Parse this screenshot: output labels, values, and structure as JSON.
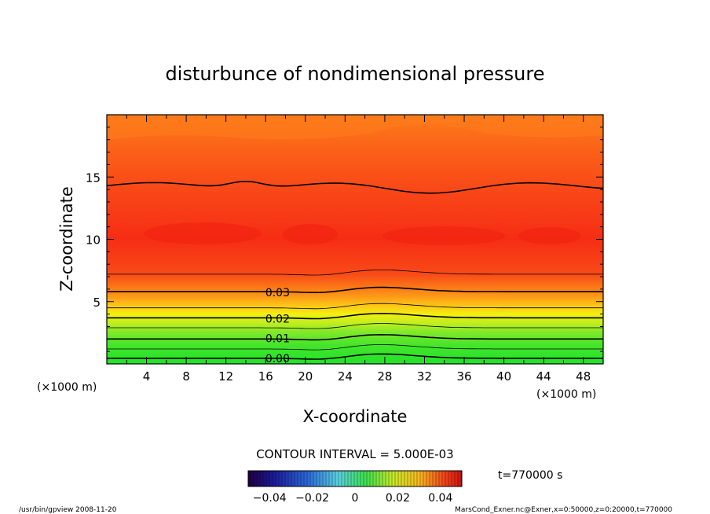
{
  "chart_data": {
    "type": "contour",
    "title": "disturbunce of nondimensional pressure",
    "xlabel": "X-coordinate",
    "ylabel": "Z-coordinate",
    "x_unit_left": "(×1000 m)",
    "x_unit_right": "(×1000 m)",
    "xlim": [
      0,
      50
    ],
    "ylim": [
      0,
      20
    ],
    "x_ticks": [
      4,
      8,
      12,
      16,
      20,
      24,
      28,
      32,
      36,
      40,
      44,
      48
    ],
    "y_ticks": [
      5,
      10,
      15
    ],
    "contour_labels": [
      {
        "value": "0.03",
        "x": 17.2,
        "z": 5.8
      },
      {
        "value": "0.02",
        "x": 17.2,
        "z": 3.7
      },
      {
        "value": "0.01",
        "x": 17.2,
        "z": 2.1
      },
      {
        "value": "0.00",
        "x": 17.2,
        "z": 0.5
      }
    ],
    "contour_interval_text": "CONTOUR INTERVAL = 5.000E-03",
    "time_label": "t=770000 s",
    "colorbar": {
      "vmin": -0.05,
      "vmax": 0.05,
      "tick_values": [
        -0.04,
        -0.02,
        0,
        0.02,
        0.04
      ],
      "tick_labels": [
        "−0.04",
        "−0.02",
        "0",
        "0.02",
        "0.04"
      ]
    },
    "color_levels": [
      {
        "z": 0.0,
        "color": "#22e22a"
      },
      {
        "z": 1.5,
        "color": "#44e52a"
      },
      {
        "z": 2.5,
        "color": "#7ee82a"
      },
      {
        "z": 3.3,
        "color": "#c2ee1e"
      },
      {
        "z": 4.0,
        "color": "#f4ef10"
      },
      {
        "z": 4.7,
        "color": "#fdc416"
      },
      {
        "z": 5.4,
        "color": "#fd9a18"
      },
      {
        "z": 6.2,
        "color": "#fb7616"
      },
      {
        "z": 7.2,
        "color": "#f94a18"
      },
      {
        "z": 10.0,
        "color": "#f62d14"
      },
      {
        "z": 14.3,
        "color": "#f94a18"
      },
      {
        "z": 16.8,
        "color": "#fb5e18"
      },
      {
        "z": 20.0,
        "color": "#fd7b1a"
      }
    ]
  },
  "footer": {
    "left": "/usr/bin/gpview  2008-11-20",
    "right": "MarsCond_Exner.nc@Exner,x=0:50000,z=0:20000,t=770000"
  }
}
